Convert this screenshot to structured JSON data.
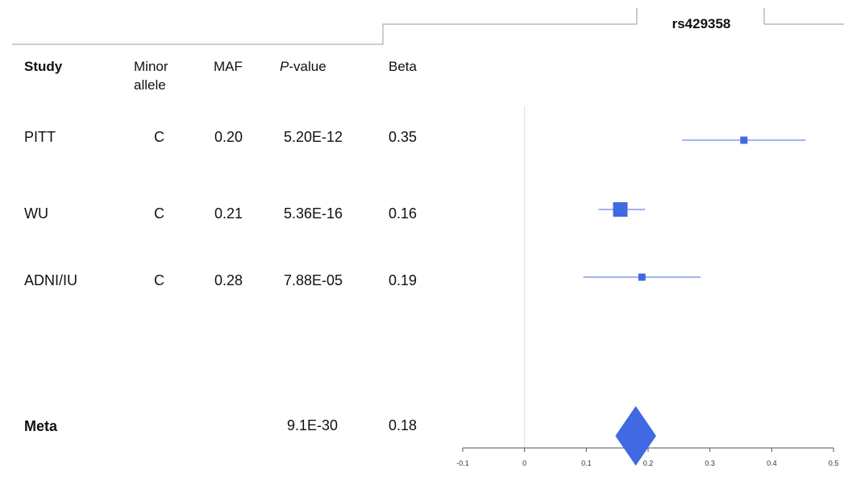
{
  "title": "rs429358",
  "columns": {
    "study": "Study",
    "minor_allele_line1": "Minor",
    "minor_allele_line2": "allele",
    "maf": "MAF",
    "pvalue_italic": "P",
    "pvalue_rest": "-value",
    "beta": "Beta"
  },
  "rows": [
    {
      "study": "PITT",
      "minor_allele": "C",
      "maf": "0.20",
      "pvalue": "5.20E-12",
      "beta": "0.35"
    },
    {
      "study": "WU",
      "minor_allele": "C",
      "maf": "0.21",
      "pvalue": "5.36E-16",
      "beta": "0.16"
    },
    {
      "study": "ADNI/IU",
      "minor_allele": "C",
      "maf": "0.28",
      "pvalue": "7.88E-05",
      "beta": "0.19"
    }
  ],
  "meta": {
    "study": "Meta",
    "pvalue": "9.1E-30",
    "beta": "0.18"
  },
  "chart_data": {
    "type": "forest",
    "xlim": [
      -0.1,
      0.5
    ],
    "x_ticks": [
      "-0.1",
      "0",
      "0.1",
      "0.2",
      "0.3",
      "0.4",
      "0.5"
    ],
    "reference_line": 0,
    "color": "#4169e1",
    "studies": [
      {
        "name": "PITT",
        "estimate": 0.355,
        "ci_low": 0.255,
        "ci_high": 0.455,
        "weight": "small"
      },
      {
        "name": "WU",
        "estimate": 0.155,
        "ci_low": 0.12,
        "ci_high": 0.195,
        "weight": "large"
      },
      {
        "name": "ADNI/IU",
        "estimate": 0.19,
        "ci_low": 0.095,
        "ci_high": 0.285,
        "weight": "small"
      }
    ],
    "meta": {
      "estimate": 0.18,
      "ci_low": 0.147,
      "ci_high": 0.213
    }
  }
}
